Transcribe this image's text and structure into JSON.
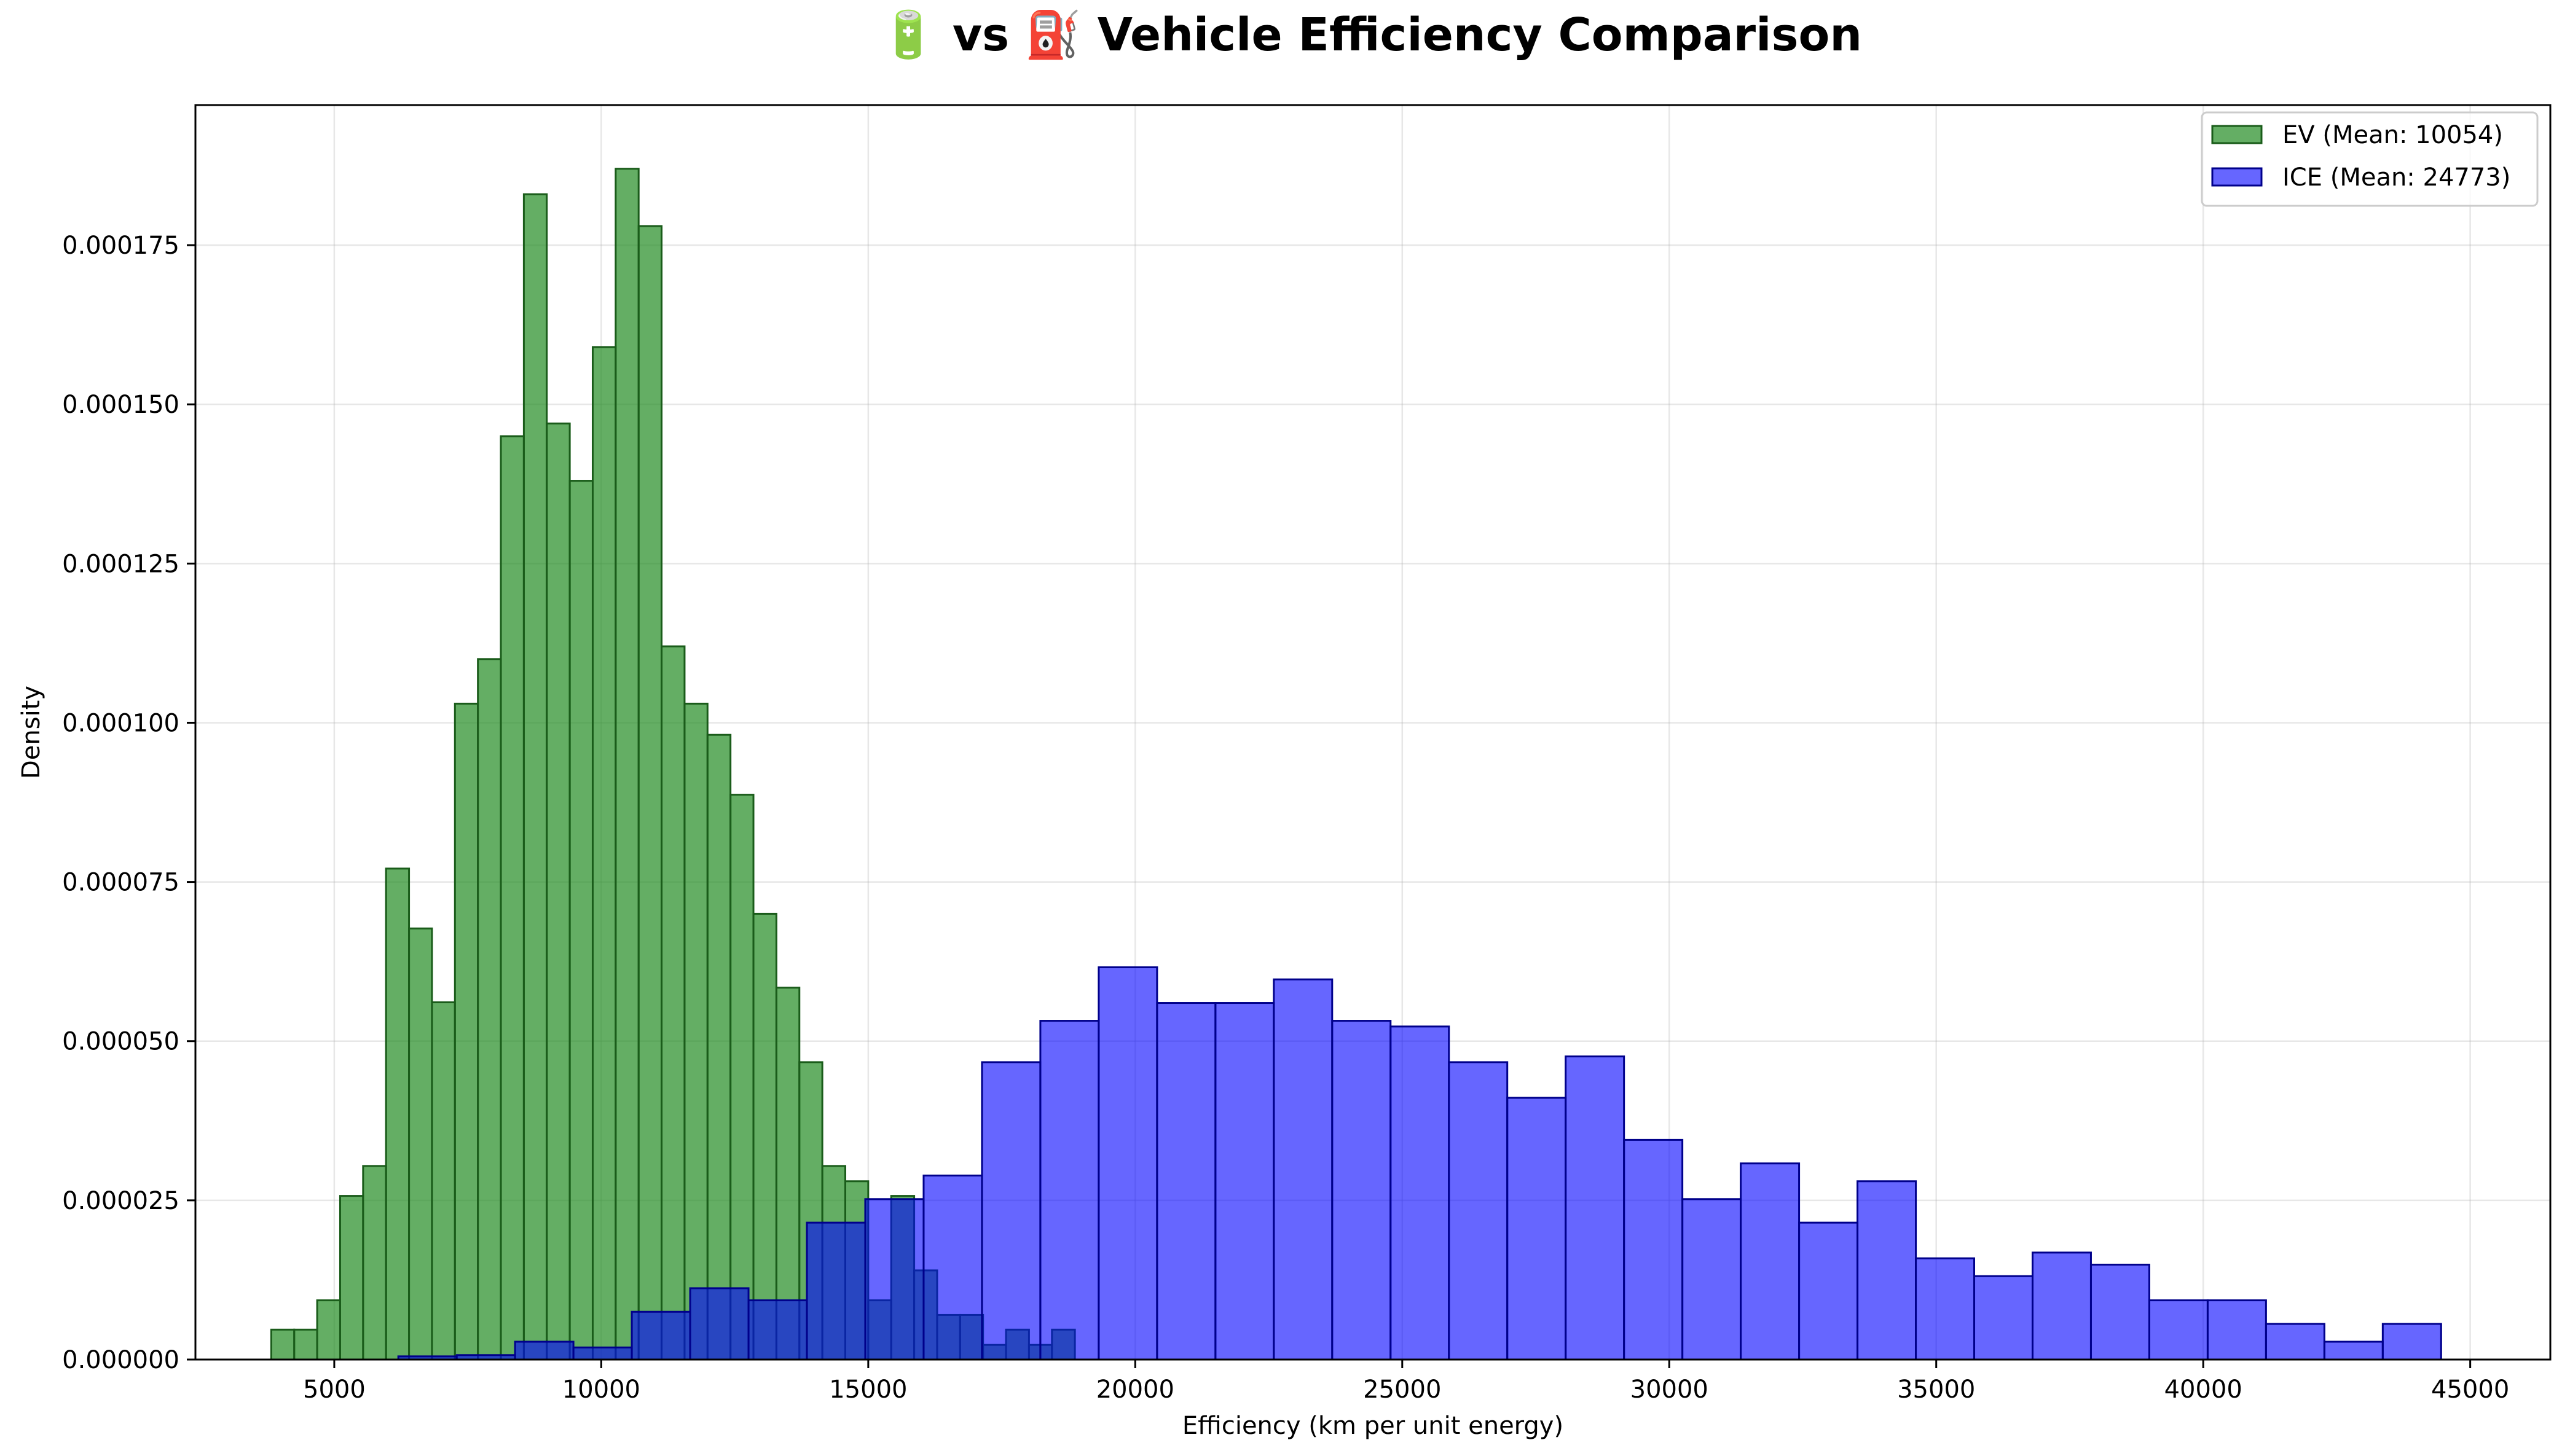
{
  "chart_data": {
    "type": "bar",
    "title": "🔋 vs ⛽ Vehicle Efficiency Comparison",
    "xlabel": "Efficiency (km per unit energy)",
    "ylabel": "Density",
    "xlim": [
      2400,
      46500
    ],
    "ylim": [
      0,
      0.000197
    ],
    "xticks": [
      5000,
      10000,
      15000,
      20000,
      25000,
      30000,
      35000,
      40000,
      45000
    ],
    "xtick_labels": [
      "5000",
      "10000",
      "15000",
      "20000",
      "25000",
      "30000",
      "35000",
      "40000",
      "45000"
    ],
    "yticks": [
      0,
      2.5e-05,
      5e-05,
      7.5e-05,
      0.0001,
      0.000125,
      0.00015,
      0.000175
    ],
    "ytick_labels": [
      "0.000000",
      "0.000025",
      "0.000050",
      "0.000075",
      "0.000100",
      "0.000125",
      "0.000150",
      "0.000175"
    ],
    "grid": true,
    "legend_position": "top-right",
    "series": [
      {
        "name": "EV (Mean: 10054)",
        "color": "#228b22",
        "edge_color": "#1a5c1a",
        "opacity": 0.7,
        "bin_start": 3820,
        "bin_width": 430,
        "values": [
          4.7e-06,
          4.7e-06,
          9.3e-06,
          2.57e-05,
          3.04e-05,
          7.71e-05,
          6.77e-05,
          5.61e-05,
          0.000103,
          0.00011,
          0.000145,
          0.000183,
          0.000147,
          0.000138,
          0.000159,
          0.000187,
          0.000178,
          0.000112,
          0.000103,
          9.81e-05,
          8.87e-05,
          7e-05,
          5.84e-05,
          4.67e-05,
          3.04e-05,
          2.8e-05,
          9.3e-06,
          2.57e-05,
          1.4e-05,
          7e-06,
          7e-06,
          2.3e-06,
          4.7e-06,
          2.3e-06,
          4.7e-06
        ]
      },
      {
        "name": "ICE (Mean: 24773)",
        "color": "#0000ff",
        "edge_color": "#00008b",
        "opacity": 0.6,
        "bin_start": 6200,
        "bin_width": 1093,
        "values": [
          5e-07,
          7e-07,
          2.8e-06,
          1.9e-06,
          7.5e-06,
          1.12e-05,
          9.3e-06,
          2.15e-05,
          2.52e-05,
          2.89e-05,
          4.67e-05,
          5.32e-05,
          6.16e-05,
          5.6e-05,
          5.6e-05,
          5.97e-05,
          5.32e-05,
          5.23e-05,
          4.67e-05,
          4.11e-05,
          4.76e-05,
          3.45e-05,
          2.52e-05,
          3.08e-05,
          2.15e-05,
          2.8e-05,
          1.59e-05,
          1.31e-05,
          1.68e-05,
          1.49e-05,
          9.3e-06,
          9.3e-06,
          5.6e-06,
          2.8e-06,
          5.6e-06
        ]
      }
    ]
  }
}
